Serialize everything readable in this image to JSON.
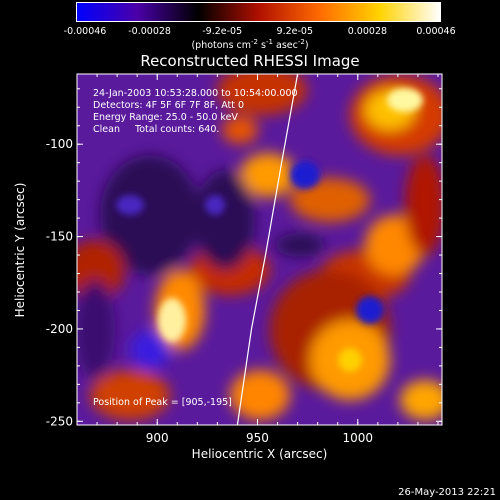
{
  "colorbar": {
    "ticks": [
      "-0.00046",
      "-0.00028",
      "-9.2e-05",
      "9.2e-05",
      "0.00028",
      "0.00046"
    ],
    "units_main": "(photons cm",
    "units_sup1": "-2",
    "units_mid": " s",
    "units_sup2": "-1",
    "units_end": " asec",
    "units_sup3": "-2",
    "units_close": ")",
    "colors": [
      "#0000ff",
      "#4b00a8",
      "#000000",
      "#b01000",
      "#ff6a00",
      "#ffd300",
      "#ffffff"
    ]
  },
  "annotations": {
    "time": "24-Jan-2003 10:53:28.000 to 10:54:00.000",
    "detectors": "Detectors: 4F 5F 6F 7F 8F, Att 0",
    "energy": "Energy Range: 25.0 - 50.0 keV",
    "clean": "Clean     Total counts: 640.",
    "peak": "Position of Peak = [905,-195]"
  },
  "footer": "26-May-2013 22:21",
  "chart_data": {
    "type": "heatmap",
    "title": "Reconstructed RHESSI Image",
    "xlabel": "Heliocentric X (arcsec)",
    "ylabel": "Heliocentric Y (arcsec)",
    "xlim": [
      860,
      1042
    ],
    "ylim": [
      -252,
      -62
    ],
    "xticks": [
      900,
      950,
      1000
    ],
    "yticks": [
      -100,
      -150,
      -200,
      -250
    ],
    "colorbar_range": [
      -0.00046,
      0.00046
    ],
    "colormap": "blue-purple-black-red-orange-yellow-white",
    "limb_curve": [
      [
        970,
        -62
      ],
      [
        962,
        -110
      ],
      [
        954,
        -160
      ],
      [
        947,
        -200
      ],
      [
        940,
        -252
      ]
    ],
    "peak_position": [
      905,
      -195
    ]
  }
}
